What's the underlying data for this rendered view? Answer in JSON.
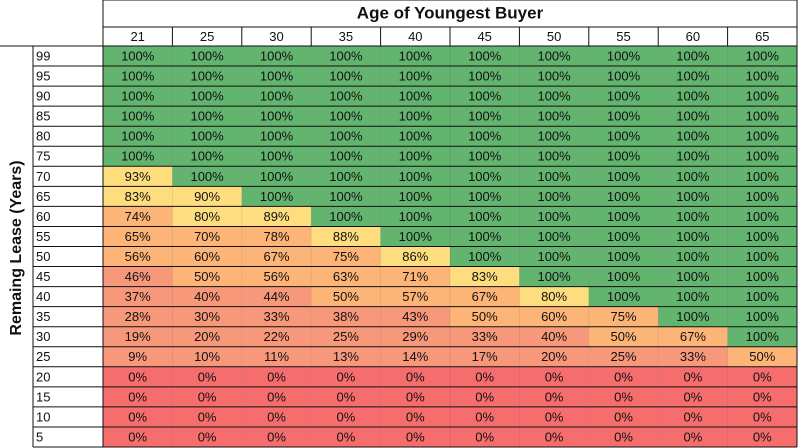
{
  "chart_data": {
    "type": "heatmap",
    "title": "Age of Youngest Buyer",
    "ylabel": "Remaing Lease (Years)",
    "x": [
      "21",
      "25",
      "30",
      "35",
      "40",
      "45",
      "50",
      "55",
      "60",
      "65"
    ],
    "y": [
      "99",
      "95",
      "90",
      "85",
      "80",
      "75",
      "70",
      "65",
      "60",
      "55",
      "50",
      "45",
      "40",
      "35",
      "30",
      "25",
      "20",
      "15",
      "10",
      "5"
    ],
    "values": [
      [
        100,
        100,
        100,
        100,
        100,
        100,
        100,
        100,
        100,
        100
      ],
      [
        100,
        100,
        100,
        100,
        100,
        100,
        100,
        100,
        100,
        100
      ],
      [
        100,
        100,
        100,
        100,
        100,
        100,
        100,
        100,
        100,
        100
      ],
      [
        100,
        100,
        100,
        100,
        100,
        100,
        100,
        100,
        100,
        100
      ],
      [
        100,
        100,
        100,
        100,
        100,
        100,
        100,
        100,
        100,
        100
      ],
      [
        100,
        100,
        100,
        100,
        100,
        100,
        100,
        100,
        100,
        100
      ],
      [
        93,
        100,
        100,
        100,
        100,
        100,
        100,
        100,
        100,
        100
      ],
      [
        83,
        90,
        100,
        100,
        100,
        100,
        100,
        100,
        100,
        100
      ],
      [
        74,
        80,
        89,
        100,
        100,
        100,
        100,
        100,
        100,
        100
      ],
      [
        65,
        70,
        78,
        88,
        100,
        100,
        100,
        100,
        100,
        100
      ],
      [
        56,
        60,
        67,
        75,
        86,
        100,
        100,
        100,
        100,
        100
      ],
      [
        46,
        50,
        56,
        63,
        71,
        83,
        100,
        100,
        100,
        100
      ],
      [
        37,
        40,
        44,
        50,
        57,
        67,
        80,
        100,
        100,
        100
      ],
      [
        28,
        30,
        33,
        38,
        43,
        50,
        60,
        75,
        100,
        100
      ],
      [
        19,
        20,
        22,
        25,
        29,
        33,
        40,
        50,
        67,
        100
      ],
      [
        9,
        10,
        11,
        13,
        14,
        17,
        20,
        25,
        33,
        50
      ],
      [
        0,
        0,
        0,
        0,
        0,
        0,
        0,
        0,
        0,
        0
      ],
      [
        0,
        0,
        0,
        0,
        0,
        0,
        0,
        0,
        0,
        0
      ],
      [
        0,
        0,
        0,
        0,
        0,
        0,
        0,
        0,
        0,
        0
      ],
      [
        0,
        0,
        0,
        0,
        0,
        0,
        0,
        0,
        0,
        0
      ]
    ],
    "value_suffix": "%",
    "colors": {
      "full": "#63b46f",
      "high": "#fedd7e",
      "mid": "#fcb577",
      "low": "#f8987b",
      "zero": "#f66d6d",
      "grid": "#111111"
    },
    "grid": true
  }
}
